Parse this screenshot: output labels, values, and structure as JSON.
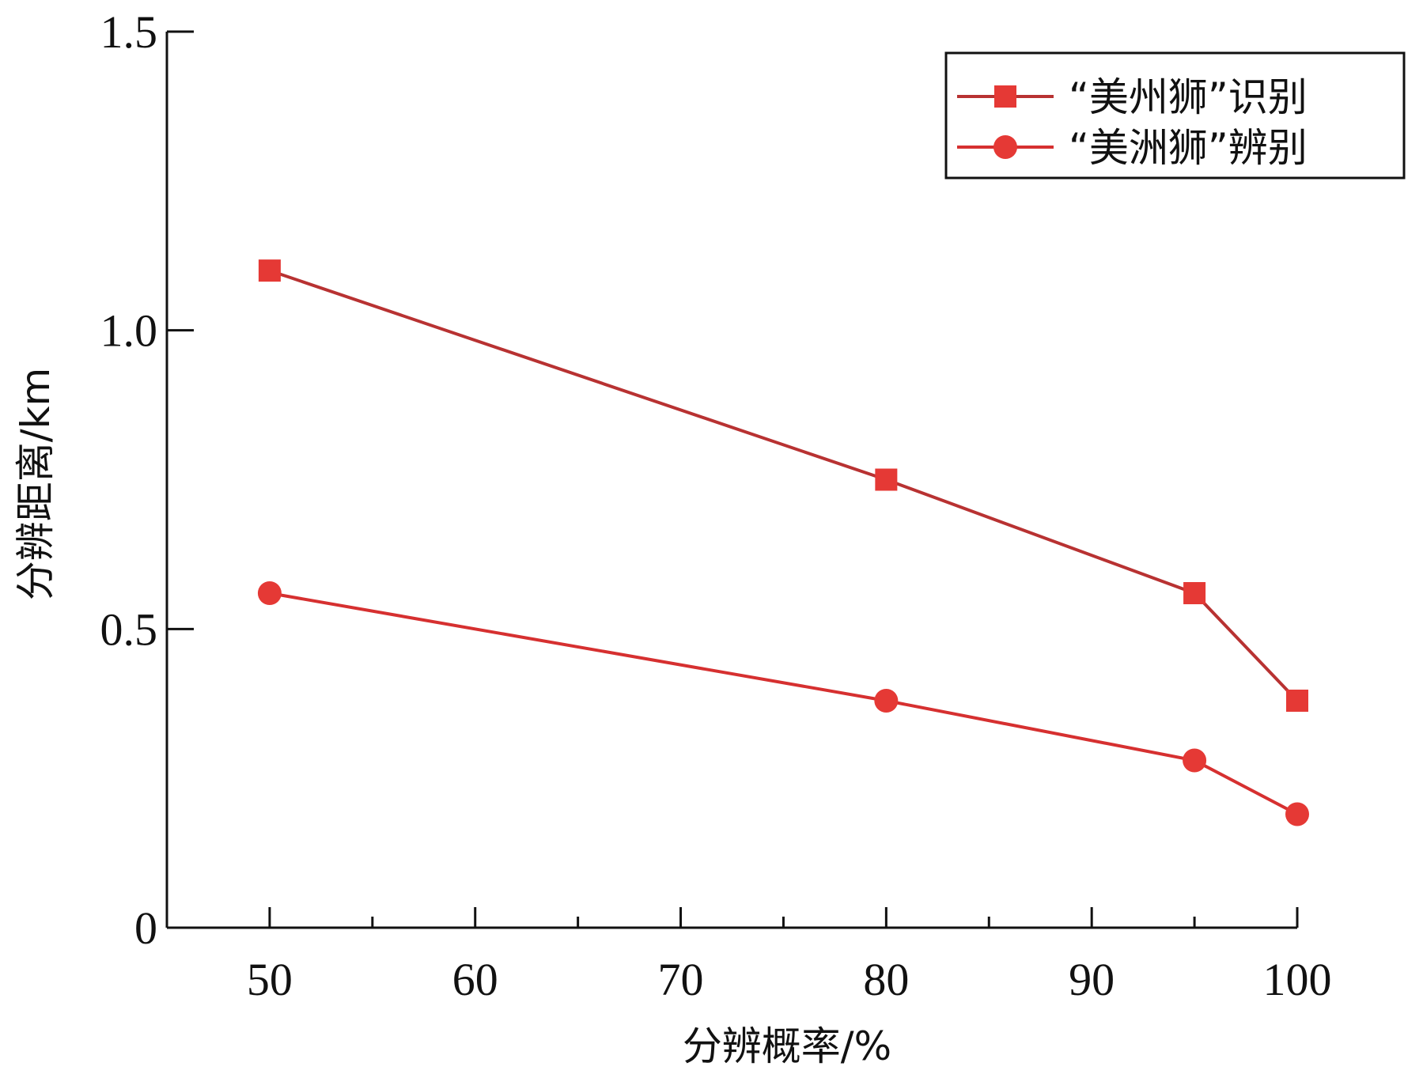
{
  "chart_data": {
    "type": "line",
    "title": "",
    "xlabel": "分辨概率/%",
    "ylabel": "分辨距离/km",
    "xlim": [
      45,
      100
    ],
    "ylim": [
      0,
      1.5
    ],
    "xticks": [
      50,
      60,
      70,
      80,
      90,
      100
    ],
    "xtick_labels": [
      "50",
      "60",
      "70",
      "80",
      "90",
      "100"
    ],
    "xminor_ticks": [
      45,
      55,
      65,
      75,
      85,
      95
    ],
    "yticks": [
      0,
      0.5,
      1.0,
      1.5
    ],
    "ytick_labels": [
      "0",
      "0.5",
      "1.0",
      "1.5"
    ],
    "grid": false,
    "legend_position": "top-right",
    "series": [
      {
        "name": "“美州狮”识别",
        "marker": "square",
        "color": "#e53935",
        "line_color": "#b83232",
        "x": [
          50,
          80,
          95,
          100
        ],
        "y": [
          1.1,
          0.75,
          0.56,
          0.38
        ]
      },
      {
        "name": "“美洲狮”辨别",
        "marker": "circle",
        "color": "#e53935",
        "line_color": "#d63030",
        "x": [
          50,
          80,
          95,
          100
        ],
        "y": [
          0.56,
          0.38,
          0.28,
          0.19
        ]
      }
    ]
  }
}
